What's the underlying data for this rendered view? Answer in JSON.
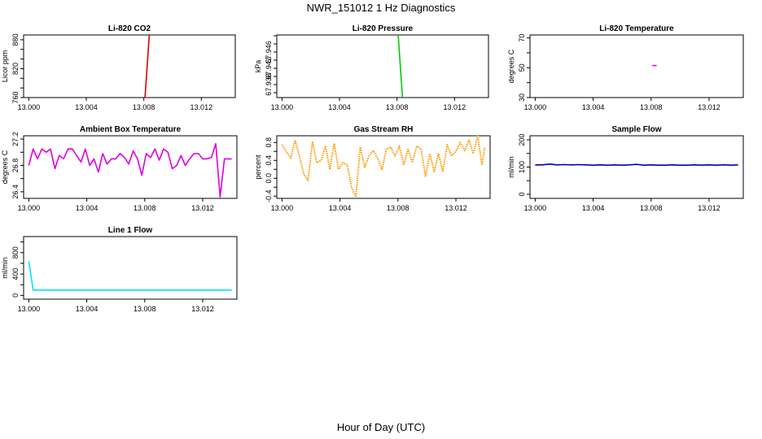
{
  "page": {
    "title": "NWR_151012  1 Hz Diagnostics",
    "x_axis_title": "Hour of Day (UTC)"
  },
  "chart_data": [
    {
      "type": "line",
      "title": "Li-820 CO2",
      "ylabel": "Licor ppm",
      "color": "#dd0000",
      "xlim": [
        12.99964,
        13.01436
      ],
      "ylim": [
        760,
        890
      ],
      "xticks": [
        "13.000",
        "13.004",
        "13.008",
        "13.012"
      ],
      "xtick_values": [
        13.0,
        13.004,
        13.008,
        13.012
      ],
      "yticks": [
        "760",
        "820",
        "880"
      ],
      "ytick_values": [
        760,
        820,
        880
      ],
      "ytick_minor": [
        780,
        800,
        840,
        860
      ],
      "series": [
        {
          "x": [
            13.00808,
            13.00838
          ],
          "y": [
            760,
            890
          ]
        }
      ]
    },
    {
      "type": "line",
      "title": "Li-820 Pressure",
      "ylabel": "kPa",
      "color": "#00cc00",
      "xlim": [
        12.99964,
        13.01436
      ],
      "ylim": [
        67.9348,
        67.9502
      ],
      "xticks": [
        "13.000",
        "13.004",
        "13.008",
        "13.012"
      ],
      "xtick_values": [
        13.0,
        13.004,
        13.008,
        13.012
      ],
      "yticks": [
        "67.938",
        "67.942",
        "67.946"
      ],
      "ytick_values": [
        67.938,
        67.942,
        67.946
      ],
      "ytick_minor": [
        67.936,
        67.94,
        67.944,
        67.948,
        67.95
      ],
      "series": [
        {
          "x": [
            13.00808,
            13.00838
          ],
          "y": [
            67.9502,
            67.9348
          ]
        }
      ]
    },
    {
      "type": "line",
      "title": "Li-820 Temperature",
      "ylabel": "degrees C",
      "color": "#dd00dd",
      "xlim": [
        12.99964,
        13.01436
      ],
      "ylim": [
        30,
        72
      ],
      "xticks": [
        "13.000",
        "13.004",
        "13.008",
        "13.012"
      ],
      "xtick_values": [
        13.0,
        13.004,
        13.008,
        13.012
      ],
      "yticks": [
        "30",
        "50",
        "70"
      ],
      "ytick_values": [
        30,
        50,
        70
      ],
      "ytick_minor": [
        40,
        60
      ],
      "series": [
        {
          "x": [
            13.00808,
            13.00838
          ],
          "y": [
            51.5,
            51.5
          ]
        }
      ]
    },
    {
      "type": "line",
      "title": "Ambient Box Temperature",
      "ylabel": "degrees C",
      "color": "#dd00dd",
      "xlim": [
        12.99964,
        13.01436
      ],
      "ylim": [
        26.3,
        27.25
      ],
      "xticks": [
        "13.000",
        "13.004",
        "13.008",
        "13.012"
      ],
      "xtick_values": [
        13.0,
        13.004,
        13.008,
        13.012
      ],
      "yticks": [
        "26.4",
        "26.8",
        "27.2"
      ],
      "ytick_values": [
        26.4,
        26.8,
        27.2
      ],
      "ytick_minor": [
        26.6,
        27.0
      ],
      "series": [
        {
          "x": [
            13.0,
            13.0003,
            13.0006,
            13.0009,
            13.0012,
            13.0015,
            13.0018,
            13.0021,
            13.0024,
            13.0027,
            13.003,
            13.0033,
            13.0036,
            13.0039,
            13.0042,
            13.0045,
            13.0048,
            13.0051,
            13.0054,
            13.0057,
            13.006,
            13.0063,
            13.0066,
            13.0069,
            13.0072,
            13.0075,
            13.0078,
            13.0081,
            13.0084,
            13.0087,
            13.009,
            13.0093,
            13.0096,
            13.0099,
            13.0102,
            13.0105,
            13.0108,
            13.0111,
            13.0114,
            13.0117,
            13.012,
            13.0123,
            13.0126,
            13.0129,
            13.0132,
            13.0135,
            13.0138,
            13.014
          ],
          "y": [
            26.8,
            27.05,
            26.9,
            27.05,
            27.0,
            27.05,
            26.75,
            26.95,
            26.9,
            27.05,
            27.05,
            26.95,
            26.85,
            27.05,
            26.8,
            26.9,
            26.7,
            26.98,
            26.82,
            26.9,
            26.9,
            26.98,
            26.92,
            26.82,
            27.02,
            26.9,
            26.65,
            26.98,
            26.92,
            27.05,
            26.88,
            27.05,
            27.0,
            26.75,
            26.8,
            26.95,
            26.8,
            26.9,
            26.98,
            26.98,
            26.9,
            26.9,
            26.92,
            27.13,
            26.32,
            26.9,
            26.9,
            26.9
          ]
        }
      ]
    },
    {
      "type": "line",
      "title": "Gas Stream RH",
      "ylabel": "percent",
      "color": "#ff9900",
      "line_style": "dotted",
      "xlim": [
        12.99964,
        13.01436
      ],
      "ylim": [
        -0.45,
        0.95
      ],
      "xticks": [
        "13.000",
        "13.004",
        "13.008",
        "13.012"
      ],
      "xtick_values": [
        13.0,
        13.004,
        13.008,
        13.012
      ],
      "yticks": [
        "-0.4",
        "0.0",
        "0.4",
        "0.8"
      ],
      "ytick_values": [
        -0.4,
        0.0,
        0.4,
        0.8
      ],
      "ytick_minor": [
        -0.2,
        0.2,
        0.6
      ],
      "series": [
        {
          "x": [
            13.0,
            13.0003,
            13.0006,
            13.0009,
            13.0012,
            13.0015,
            13.0018,
            13.0021,
            13.0024,
            13.0027,
            13.003,
            13.0033,
            13.0036,
            13.0039,
            13.0042,
            13.0045,
            13.0048,
            13.0051,
            13.0054,
            13.0057,
            13.006,
            13.0063,
            13.0066,
            13.0069,
            13.0072,
            13.0075,
            13.0078,
            13.0081,
            13.0084,
            13.0087,
            13.009,
            13.0093,
            13.0096,
            13.0099,
            13.0102,
            13.0105,
            13.0108,
            13.0111,
            13.0114,
            13.0117,
            13.012,
            13.0123,
            13.0126,
            13.0129,
            13.0132,
            13.0135,
            13.0138,
            13.014
          ],
          "y": [
            0.75,
            0.6,
            0.45,
            0.85,
            0.5,
            0.1,
            -0.05,
            0.82,
            0.35,
            0.4,
            0.72,
            0.2,
            0.78,
            0.2,
            0.35,
            0.3,
            -0.2,
            -0.42,
            0.7,
            0.25,
            0.5,
            0.62,
            0.45,
            0.2,
            0.65,
            0.7,
            0.5,
            0.72,
            0.3,
            0.65,
            0.35,
            0.72,
            0.65,
            0.05,
            0.55,
            0.15,
            0.55,
            0.15,
            0.75,
            0.5,
            0.6,
            0.8,
            0.62,
            0.85,
            0.55,
            0.95,
            0.3,
            0.7
          ]
        }
      ]
    },
    {
      "type": "line",
      "title": "Sample Flow",
      "ylabel": "ml/min",
      "color": "#0000aa",
      "xlim": [
        12.99964,
        13.01436
      ],
      "ylim": [
        -15,
        215
      ],
      "xticks": [
        "13.000",
        "13.004",
        "13.008",
        "13.012"
      ],
      "xtick_values": [
        13.0,
        13.004,
        13.008,
        13.012
      ],
      "yticks": [
        "0",
        "100",
        "200"
      ],
      "ytick_values": [
        0,
        100,
        200
      ],
      "ytick_minor": [
        50,
        150
      ],
      "series": [
        {
          "x": [
            13.0,
            13.0005,
            13.001,
            13.0015,
            13.002,
            13.0025,
            13.003,
            13.0035,
            13.004,
            13.0045,
            13.005,
            13.0055,
            13.006,
            13.0065,
            13.007,
            13.0075,
            13.008,
            13.0085,
            13.009,
            13.0095,
            13.01,
            13.0105,
            13.011,
            13.0115,
            13.012,
            13.0125,
            13.013,
            13.0135,
            13.014
          ],
          "y": [
            108,
            108,
            111,
            108,
            109,
            108,
            109,
            108,
            107,
            108,
            107,
            108,
            107,
            108,
            110,
            107,
            108,
            107,
            107,
            108,
            107,
            107,
            108,
            107,
            108,
            107,
            108,
            107,
            108
          ]
        }
      ]
    },
    {
      "type": "line",
      "title": "Line 1 Flow",
      "ylabel": "ml/min",
      "color": "#00e5ee",
      "xlim": [
        12.99964,
        13.01436
      ],
      "ylim": [
        -70,
        1100
      ],
      "xticks": [
        "13.000",
        "13.004",
        "13.008",
        "13.012"
      ],
      "xtick_values": [
        13.0,
        13.004,
        13.008,
        13.012
      ],
      "yticks": [
        "0",
        "400",
        "800"
      ],
      "ytick_values": [
        0,
        400,
        800
      ],
      "ytick_minor": [
        200,
        600,
        1000
      ],
      "series": [
        {
          "x": [
            13.0,
            13.0003,
            13.001,
            13.002,
            13.003,
            13.004,
            13.005,
            13.006,
            13.007,
            13.008,
            13.009,
            13.01,
            13.011,
            13.012,
            13.013,
            13.014
          ],
          "y": [
            640,
            100,
            100,
            100,
            100,
            100,
            100,
            100,
            100,
            100,
            100,
            100,
            100,
            100,
            100,
            100
          ]
        }
      ]
    }
  ]
}
